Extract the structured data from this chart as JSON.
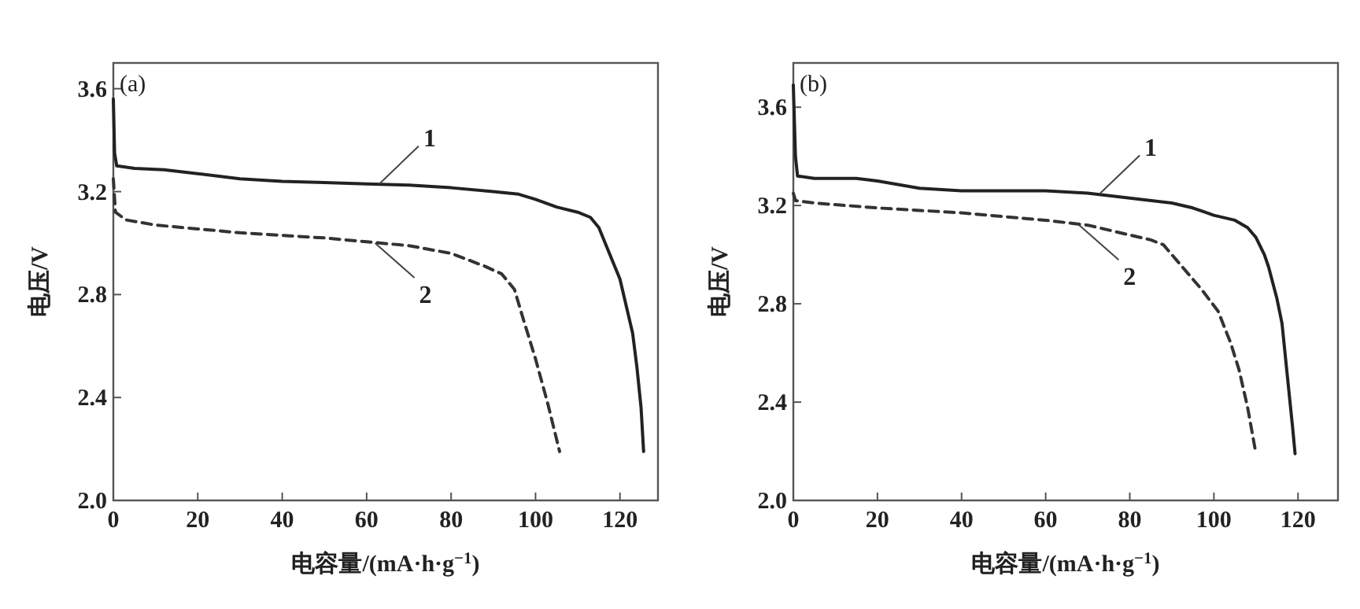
{
  "chart_data": [
    {
      "type": "line",
      "xlabel": "电容量/(mA·h·g$^{−1}$)",
      "ylabel": "电压/V",
      "xlim": [
        0,
        129
      ],
      "ylim": [
        2.0,
        3.7
      ],
      "xticks": [
        0,
        20,
        40,
        60,
        80,
        100,
        120
      ],
      "yticks": [
        {
          "value": 2.0,
          "label": "2.0"
        },
        2.4,
        2.8,
        3.2,
        3.6
      ],
      "grid": false,
      "marker": "none",
      "annotations": [
        "(a)",
        {
          "text": "1",
          "x": 63,
          "y": 3.23
        },
        {
          "text": "2",
          "x": 62,
          "y": 3.0
        }
      ],
      "series": [
        {
          "color": "#222222",
          "line_style": "solid",
          "x": [
            0,
            0.3,
            0.8,
            5,
            12,
            20,
            30,
            40,
            50,
            60,
            70,
            80,
            90,
            96,
            100,
            105,
            110,
            113,
            115,
            117,
            120,
            123,
            124,
            125,
            125.6
          ],
          "values": [
            3.56,
            3.35,
            3.3,
            3.29,
            3.285,
            3.27,
            3.25,
            3.24,
            3.235,
            3.23,
            3.225,
            3.215,
            3.2,
            3.19,
            3.17,
            3.14,
            3.12,
            3.1,
            3.06,
            2.98,
            2.86,
            2.65,
            2.52,
            2.36,
            2.19
          ]
        },
        {
          "color": "#333333",
          "line_style": "dashed",
          "x": [
            0,
            0.5,
            3,
            10,
            20,
            30,
            40,
            50,
            60,
            70,
            80,
            88,
            92,
            95,
            97,
            100,
            103,
            105.7
          ],
          "values": [
            3.25,
            3.12,
            3.09,
            3.07,
            3.055,
            3.04,
            3.03,
            3.02,
            3.005,
            2.99,
            2.96,
            2.91,
            2.88,
            2.82,
            2.71,
            2.55,
            2.37,
            2.19
          ]
        }
      ]
    },
    {
      "type": "line",
      "xlabel": "电容量/(mA·h·g$^{−1}$)",
      "ylabel": "电压/V",
      "xlim": [
        0,
        129.5
      ],
      "ylim": [
        2.0,
        3.78
      ],
      "xticks": [
        0,
        20,
        40,
        60,
        80,
        100,
        120
      ],
      "yticks": [
        {
          "value": 2.0,
          "label": "2.0"
        },
        2.4,
        2.8,
        3.2,
        3.6
      ],
      "grid": false,
      "marker": "none",
      "annotations": [
        "(b)",
        {
          "text": "1",
          "x": 73,
          "y": 3.25
        },
        {
          "text": "2",
          "x": 68,
          "y": 3.12
        }
      ],
      "series": [
        {
          "color": "#222222",
          "line_style": "solid",
          "x": [
            0,
            0.5,
            1,
            5,
            15,
            20,
            30,
            40,
            60,
            70,
            80,
            90,
            95,
            100,
            105,
            108,
            110,
            112,
            113,
            115,
            116.2,
            117.5,
            118.7,
            119.3
          ],
          "values": [
            3.69,
            3.4,
            3.32,
            3.31,
            3.31,
            3.3,
            3.27,
            3.26,
            3.26,
            3.25,
            3.23,
            3.21,
            3.19,
            3.16,
            3.14,
            3.11,
            3.07,
            3.0,
            2.95,
            2.82,
            2.72,
            2.5,
            2.3,
            2.19
          ]
        },
        {
          "color": "#333333",
          "line_style": "dashed",
          "x": [
            0,
            0.5,
            5,
            20,
            40,
            60,
            70,
            80,
            85,
            88,
            94,
            97,
            101,
            104,
            106,
            108,
            110
          ],
          "values": [
            3.25,
            3.22,
            3.21,
            3.19,
            3.17,
            3.14,
            3.12,
            3.08,
            3.06,
            3.04,
            2.92,
            2.86,
            2.77,
            2.64,
            2.53,
            2.38,
            2.19
          ]
        }
      ]
    }
  ]
}
